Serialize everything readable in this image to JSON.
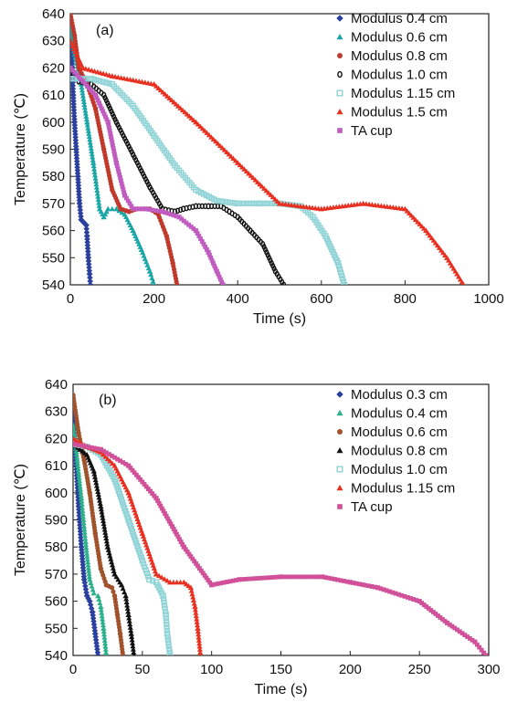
{
  "chart_data": [
    {
      "type": "scatter",
      "panel_label": "(a)",
      "xlabel": "Time (s)",
      "ylabel": "Temperature (℃)",
      "xlim": [
        0,
        1000
      ],
      "ylim": [
        540,
        640
      ],
      "xticks": [
        0,
        200,
        400,
        600,
        800,
        1000
      ],
      "yticks": [
        540,
        550,
        560,
        570,
        580,
        590,
        600,
        610,
        620,
        630,
        640
      ],
      "legend_position": "top-right",
      "series": [
        {
          "name": "Modulus 0.4 cm",
          "marker": "diamond",
          "color": "#2b3f9e",
          "points": [
            [
              0,
              640
            ],
            [
              3,
              625
            ],
            [
              7,
              610
            ],
            [
              10,
              600
            ],
            [
              14,
              590
            ],
            [
              18,
              580
            ],
            [
              22,
              570
            ],
            [
              26,
              564
            ],
            [
              32,
              563
            ],
            [
              38,
              562
            ],
            [
              40,
              558
            ],
            [
              43,
              550
            ],
            [
              46,
              544
            ],
            [
              48,
              540
            ]
          ]
        },
        {
          "name": "Modulus 0.6 cm",
          "marker": "triangle",
          "color": "#1aa6a6",
          "points": [
            [
              0,
              635
            ],
            [
              10,
              625
            ],
            [
              25,
              615
            ],
            [
              40,
              600
            ],
            [
              55,
              585
            ],
            [
              70,
              568
            ],
            [
              80,
              565
            ],
            [
              90,
              568
            ],
            [
              110,
              568
            ],
            [
              130,
              566
            ],
            [
              150,
              560
            ],
            [
              170,
              553
            ],
            [
              190,
              545
            ],
            [
              200,
              540
            ]
          ]
        },
        {
          "name": "Modulus 0.8 cm",
          "marker": "circle",
          "color": "#c0392b",
          "points": [
            [
              0,
              640
            ],
            [
              10,
              632
            ],
            [
              20,
              620
            ],
            [
              40,
              614
            ],
            [
              60,
              605
            ],
            [
              80,
              590
            ],
            [
              100,
              575
            ],
            [
              120,
              568
            ],
            [
              140,
              567
            ],
            [
              160,
              568
            ],
            [
              190,
              568
            ],
            [
              210,
              566
            ],
            [
              230,
              558
            ],
            [
              245,
              548
            ],
            [
              255,
              540
            ]
          ]
        },
        {
          "name": "Modulus 1.0 cm",
          "marker": "circle-open",
          "color": "#111111",
          "points": [
            [
              0,
              618
            ],
            [
              20,
              615
            ],
            [
              50,
              614
            ],
            [
              80,
              610
            ],
            [
              110,
              600
            ],
            [
              150,
              588
            ],
            [
              190,
              576
            ],
            [
              220,
              568
            ],
            [
              250,
              567
            ],
            [
              270,
              568
            ],
            [
              300,
              569
            ],
            [
              330,
              569
            ],
            [
              360,
              569
            ],
            [
              380,
              567
            ],
            [
              400,
              565
            ],
            [
              430,
              560
            ],
            [
              460,
              555
            ],
            [
              490,
              545
            ],
            [
              510,
              540
            ]
          ]
        },
        {
          "name": "Modulus 1.15 cm",
          "marker": "square-open",
          "color": "#8fd3d6",
          "points": [
            [
              0,
              616
            ],
            [
              50,
              616
            ],
            [
              100,
              614
            ],
            [
              150,
              606
            ],
            [
              200,
              595
            ],
            [
              250,
              584
            ],
            [
              300,
              575
            ],
            [
              350,
              571
            ],
            [
              400,
              570
            ],
            [
              450,
              570
            ],
            [
              500,
              570
            ],
            [
              550,
              569
            ],
            [
              580,
              565
            ],
            [
              610,
              558
            ],
            [
              640,
              548
            ],
            [
              655,
              540
            ]
          ]
        },
        {
          "name": "Modulus 1.5 cm",
          "marker": "triangle",
          "color": "#e83020",
          "points": [
            [
              0,
              630
            ],
            [
              30,
              620
            ],
            [
              100,
              617
            ],
            [
              200,
              614
            ],
            [
              300,
              600
            ],
            [
              400,
              585
            ],
            [
              500,
              570
            ],
            [
              600,
              568
            ],
            [
              700,
              570
            ],
            [
              800,
              568
            ],
            [
              850,
              560
            ],
            [
              900,
              550
            ],
            [
              940,
              540
            ]
          ]
        },
        {
          "name": "TA cup",
          "marker": "square",
          "color": "#c05cc0",
          "points": [
            [
              0,
              620
            ],
            [
              30,
              615
            ],
            [
              60,
              610
            ],
            [
              90,
              600
            ],
            [
              110,
              585
            ],
            [
              130,
              573
            ],
            [
              150,
              568
            ],
            [
              180,
              568
            ],
            [
              220,
              567
            ],
            [
              260,
              565
            ],
            [
              300,
              560
            ],
            [
              330,
              552
            ],
            [
              350,
              545
            ],
            [
              365,
              540
            ]
          ]
        }
      ]
    },
    {
      "type": "scatter",
      "panel_label": "(b)",
      "xlabel": "Time (s)",
      "ylabel": "Temperature (℃)",
      "xlim": [
        0,
        300
      ],
      "ylim": [
        540,
        640
      ],
      "xticks": [
        0,
        50,
        100,
        150,
        200,
        250,
        300
      ],
      "yticks": [
        540,
        550,
        560,
        570,
        580,
        590,
        600,
        610,
        620,
        630,
        640
      ],
      "legend_position": "top-right",
      "series": [
        {
          "name": "Modulus 0.3 cm",
          "marker": "diamond",
          "color": "#2b3f9e",
          "points": [
            [
              0,
              630
            ],
            [
              2,
              612
            ],
            [
              4,
              595
            ],
            [
              6,
              580
            ],
            [
              8,
              568
            ],
            [
              10,
              562
            ],
            [
              12,
              560
            ],
            [
              14,
              556
            ],
            [
              16,
              548
            ],
            [
              18,
              540
            ]
          ]
        },
        {
          "name": "Modulus 0.4 cm",
          "marker": "triangle",
          "color": "#2bb08a",
          "points": [
            [
              0,
              625
            ],
            [
              3,
              612
            ],
            [
              6,
              598
            ],
            [
              9,
              582
            ],
            [
              12,
              568
            ],
            [
              15,
              563
            ],
            [
              18,
              562
            ],
            [
              20,
              558
            ],
            [
              22,
              550
            ],
            [
              24,
              540
            ]
          ]
        },
        {
          "name": "Modulus 0.6 cm",
          "marker": "circle",
          "color": "#a0522d",
          "points": [
            [
              0,
              636
            ],
            [
              4,
              622
            ],
            [
              8,
              612
            ],
            [
              12,
              600
            ],
            [
              16,
              585
            ],
            [
              20,
              572
            ],
            [
              24,
              566
            ],
            [
              28,
              565
            ],
            [
              30,
              562
            ],
            [
              32,
              555
            ],
            [
              34,
              548
            ],
            [
              36,
              540
            ]
          ]
        },
        {
          "name": "Modulus 0.8 cm",
          "marker": "triangle",
          "color": "#111111",
          "points": [
            [
              0,
              618
            ],
            [
              5,
              616
            ],
            [
              10,
              614
            ],
            [
              15,
              608
            ],
            [
              20,
              595
            ],
            [
              25,
              580
            ],
            [
              30,
              570
            ],
            [
              35,
              566
            ],
            [
              38,
              562
            ],
            [
              40,
              555
            ],
            [
              42,
              548
            ],
            [
              44,
              540
            ]
          ]
        },
        {
          "name": "Modulus 1.0 cm",
          "marker": "square-open",
          "color": "#8fd3d6",
          "points": [
            [
              0,
              618
            ],
            [
              10,
              617
            ],
            [
              20,
              614
            ],
            [
              30,
              605
            ],
            [
              40,
              590
            ],
            [
              50,
              575
            ],
            [
              55,
              568
            ],
            [
              60,
              567
            ],
            [
              65,
              562
            ],
            [
              67,
              555
            ],
            [
              68,
              548
            ],
            [
              70,
              540
            ]
          ]
        },
        {
          "name": "Modulus 1.15 cm",
          "marker": "triangle",
          "color": "#e83020",
          "points": [
            [
              0,
              620
            ],
            [
              10,
              617
            ],
            [
              20,
              615
            ],
            [
              30,
              610
            ],
            [
              40,
              600
            ],
            [
              50,
              585
            ],
            [
              60,
              570
            ],
            [
              70,
              567
            ],
            [
              80,
              567
            ],
            [
              85,
              565
            ],
            [
              88,
              558
            ],
            [
              90,
              550
            ],
            [
              92,
              540
            ]
          ]
        },
        {
          "name": "TA cup",
          "marker": "square",
          "color": "#d0509a",
          "points": [
            [
              0,
              618
            ],
            [
              20,
              616
            ],
            [
              40,
              610
            ],
            [
              60,
              598
            ],
            [
              80,
              580
            ],
            [
              100,
              566
            ],
            [
              120,
              568
            ],
            [
              150,
              569
            ],
            [
              180,
              569
            ],
            [
              200,
              567
            ],
            [
              220,
              565
            ],
            [
              250,
              560
            ],
            [
              270,
              552
            ],
            [
              290,
              545
            ],
            [
              298,
              540
            ]
          ]
        }
      ]
    }
  ]
}
